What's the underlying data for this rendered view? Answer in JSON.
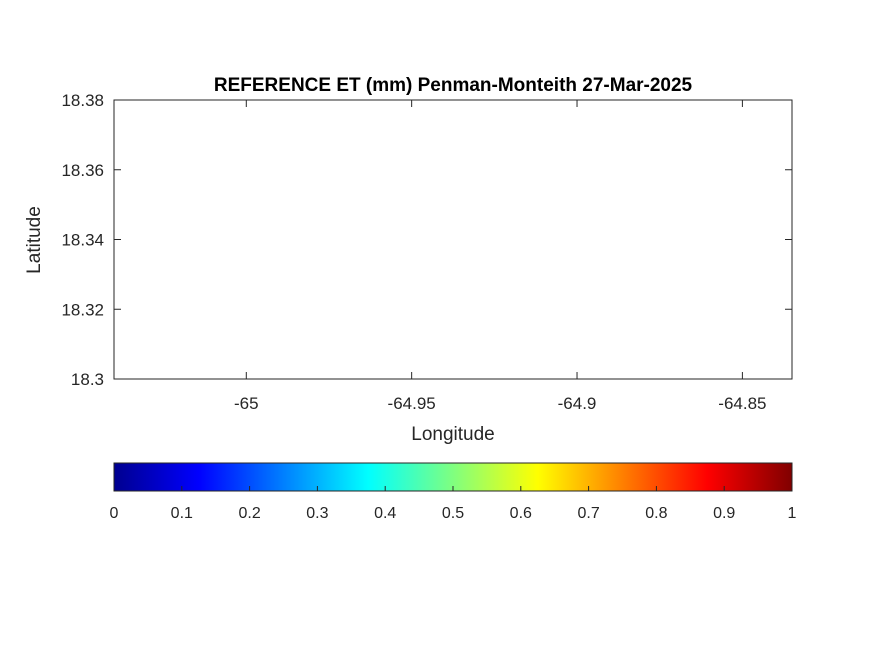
{
  "chart_data": {
    "type": "heatmap",
    "title": "REFERENCE ET (mm) Penman-Monteith 27-Mar-2025",
    "xlabel": "Longitude",
    "ylabel": "Latitude",
    "xlim": [
      -65.04,
      -64.835
    ],
    "ylim": [
      18.3,
      18.38
    ],
    "xticks": [
      -65,
      -64.95,
      -64.9,
      -64.85
    ],
    "xtick_labels": [
      "-65",
      "-64.95",
      "-64.9",
      "-64.85"
    ],
    "yticks": [
      18.3,
      18.32,
      18.34,
      18.36,
      18.38
    ],
    "ytick_labels": [
      "18.3",
      "18.32",
      "18.34",
      "18.36",
      "18.38"
    ],
    "grid": false,
    "values": [],
    "colorbar": {
      "orientation": "horizontal",
      "colormap": "jet",
      "range": [
        0,
        1
      ],
      "ticks": [
        0,
        0.1,
        0.2,
        0.3,
        0.4,
        0.5,
        0.6,
        0.7,
        0.8,
        0.9,
        1
      ],
      "tick_labels": [
        "0",
        "0.1",
        "0.2",
        "0.3",
        "0.4",
        "0.5",
        "0.6",
        "0.7",
        "0.8",
        "0.9",
        "1"
      ],
      "colors": [
        "#00008f",
        "#0000ff",
        "#00ffff",
        "#ffff00",
        "#ff0000",
        "#800000"
      ]
    }
  }
}
